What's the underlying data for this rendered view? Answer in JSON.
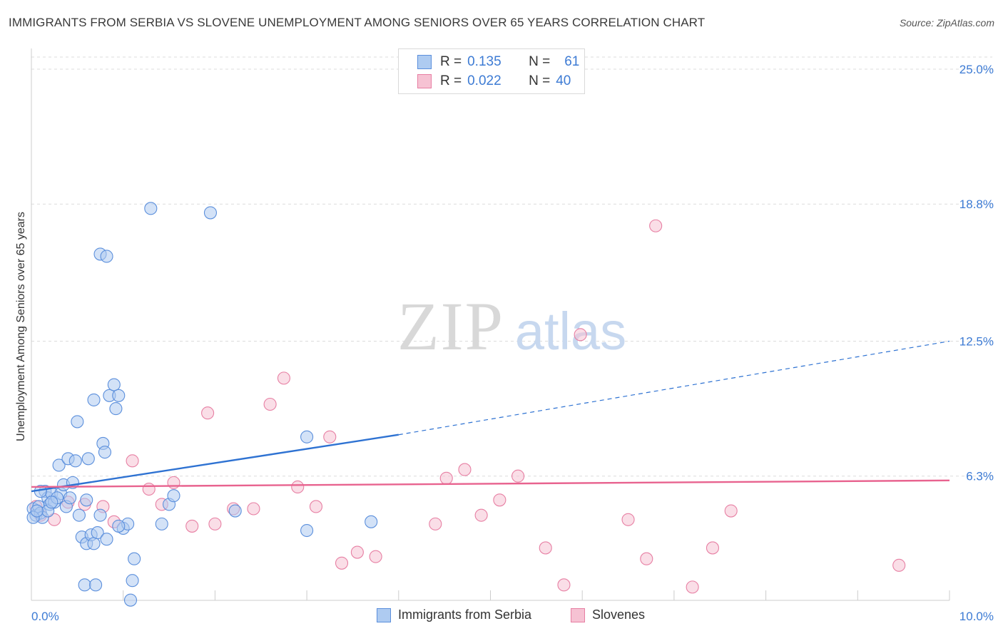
{
  "title": "IMMIGRANTS FROM SERBIA VS SLOVENE UNEMPLOYMENT AMONG SENIORS OVER 65 YEARS CORRELATION CHART",
  "source": "Source: ZipAtlas.com",
  "watermark": {
    "zip": "ZIP",
    "atlas": "atlas"
  },
  "colors": {
    "blue": "#5b8fdc",
    "blue_fill": "#aecbf1",
    "blue_line": "#2e72d2",
    "pink": "#e77fa3",
    "pink_fill": "#f6c2d3",
    "pink_line": "#e8638f",
    "axis_text": "#3d7bd4",
    "grid": "#dcdcdc"
  },
  "legend_top": {
    "r_label": "R =",
    "n_label": "N =",
    "rows": [
      {
        "series": "blue",
        "r": "0.135",
        "n": "61"
      },
      {
        "series": "pink",
        "r": "0.022",
        "n": "40"
      }
    ]
  },
  "legend_bottom": [
    {
      "series": "blue",
      "label": "Immigrants from Serbia"
    },
    {
      "series": "pink",
      "label": "Slovenes"
    }
  ],
  "chart_data": {
    "type": "scatter",
    "title": "IMMIGRANTS FROM SERBIA VS SLOVENE UNEMPLOYMENT AMONG SENIORS OVER 65 YEARS CORRELATION CHART",
    "xlabel": "",
    "ylabel": "Unemployment Among Seniors over 65 years",
    "xlim": [
      0,
      10
    ],
    "ylim": [
      0,
      25
    ],
    "x_tick_labels": [
      {
        "value": 0,
        "label": "0.0%"
      },
      {
        "value": 10,
        "label": "10.0%"
      }
    ],
    "y_tick_labels": [
      {
        "value": 6.3,
        "label": "6.3%"
      },
      {
        "value": 12.5,
        "label": "12.5%"
      },
      {
        "value": 18.8,
        "label": "18.8%"
      },
      {
        "value": 25.0,
        "label": "25.0%"
      }
    ],
    "series": [
      {
        "name": "Immigrants from Serbia",
        "color": "blue",
        "trend": {
          "x0": 0,
          "y0": 5.6,
          "x1": 4.0,
          "y1": 8.2,
          "dash_to_x": 10.0,
          "dash_to_y": 12.5
        },
        "points": [
          [
            0.02,
            4.8
          ],
          [
            0.05,
            4.5
          ],
          [
            0.08,
            4.9
          ],
          [
            0.1,
            4.6
          ],
          [
            0.12,
            4.4
          ],
          [
            0.15,
            5.6
          ],
          [
            0.18,
            5.3
          ],
          [
            0.2,
            5.0
          ],
          [
            0.22,
            5.5
          ],
          [
            0.25,
            5.1
          ],
          [
            0.3,
            6.8
          ],
          [
            0.32,
            5.5
          ],
          [
            0.35,
            5.9
          ],
          [
            0.38,
            4.9
          ],
          [
            0.4,
            7.1
          ],
          [
            0.45,
            6.0
          ],
          [
            0.48,
            7.0
          ],
          [
            0.5,
            8.8
          ],
          [
            0.52,
            4.5
          ],
          [
            0.55,
            3.5
          ],
          [
            0.58,
            1.3
          ],
          [
            0.6,
            3.2
          ],
          [
            0.62,
            7.1
          ],
          [
            0.65,
            3.6
          ],
          [
            0.68,
            3.2
          ],
          [
            0.7,
            1.3
          ],
          [
            0.72,
            3.7
          ],
          [
            0.75,
            4.5
          ],
          [
            0.78,
            7.8
          ],
          [
            0.8,
            7.4
          ],
          [
            0.82,
            3.4
          ],
          [
            0.85,
            10.0
          ],
          [
            0.9,
            10.5
          ],
          [
            0.92,
            9.4
          ],
          [
            0.95,
            10.0
          ],
          [
            1.0,
            3.9
          ],
          [
            1.05,
            4.1
          ],
          [
            1.1,
            1.5
          ],
          [
            1.12,
            2.5
          ],
          [
            0.68,
            9.8
          ],
          [
            0.95,
            4.0
          ],
          [
            1.42,
            4.1
          ],
          [
            1.5,
            5.0
          ],
          [
            1.55,
            5.4
          ],
          [
            0.75,
            16.5
          ],
          [
            0.82,
            16.4
          ],
          [
            1.3,
            18.6
          ],
          [
            1.95,
            18.4
          ],
          [
            3.0,
            8.1
          ],
          [
            3.0,
            3.8
          ],
          [
            3.7,
            4.2
          ],
          [
            1.08,
            0.6
          ],
          [
            0.6,
            5.2
          ],
          [
            0.28,
            5.3
          ],
          [
            0.1,
            5.6
          ],
          [
            0.18,
            4.7
          ],
          [
            0.22,
            5.1
          ],
          [
            0.02,
            4.4
          ],
          [
            0.06,
            4.7
          ],
          [
            0.42,
            5.3
          ],
          [
            2.22,
            4.7
          ]
        ]
      },
      {
        "name": "Slovenes",
        "color": "pink",
        "trend": {
          "x0": 0,
          "y0": 5.8,
          "x1": 10.0,
          "y1": 6.1
        },
        "points": [
          [
            0.05,
            4.9
          ],
          [
            0.1,
            4.5
          ],
          [
            0.25,
            4.3
          ],
          [
            0.4,
            5.1
          ],
          [
            0.58,
            5.0
          ],
          [
            0.78,
            4.9
          ],
          [
            0.9,
            4.2
          ],
          [
            1.1,
            7.0
          ],
          [
            1.28,
            5.7
          ],
          [
            1.42,
            5.0
          ],
          [
            1.55,
            6.0
          ],
          [
            1.75,
            4.0
          ],
          [
            1.92,
            9.2
          ],
          [
            2.0,
            4.1
          ],
          [
            2.2,
            4.8
          ],
          [
            2.42,
            4.8
          ],
          [
            2.6,
            9.6
          ],
          [
            2.75,
            10.8
          ],
          [
            2.9,
            5.8
          ],
          [
            3.1,
            4.9
          ],
          [
            3.25,
            8.1
          ],
          [
            3.38,
            2.3
          ],
          [
            3.55,
            2.8
          ],
          [
            3.75,
            2.6
          ],
          [
            4.4,
            4.1
          ],
          [
            4.52,
            6.2
          ],
          [
            4.72,
            6.6
          ],
          [
            4.9,
            4.5
          ],
          [
            5.1,
            5.2
          ],
          [
            5.3,
            6.3
          ],
          [
            5.6,
            3.0
          ],
          [
            5.8,
            1.3
          ],
          [
            5.98,
            12.8
          ],
          [
            6.5,
            4.3
          ],
          [
            6.7,
            2.5
          ],
          [
            6.8,
            17.8
          ],
          [
            7.2,
            1.2
          ],
          [
            7.42,
            3.0
          ],
          [
            7.62,
            4.7
          ],
          [
            9.45,
            2.2
          ]
        ]
      }
    ]
  }
}
